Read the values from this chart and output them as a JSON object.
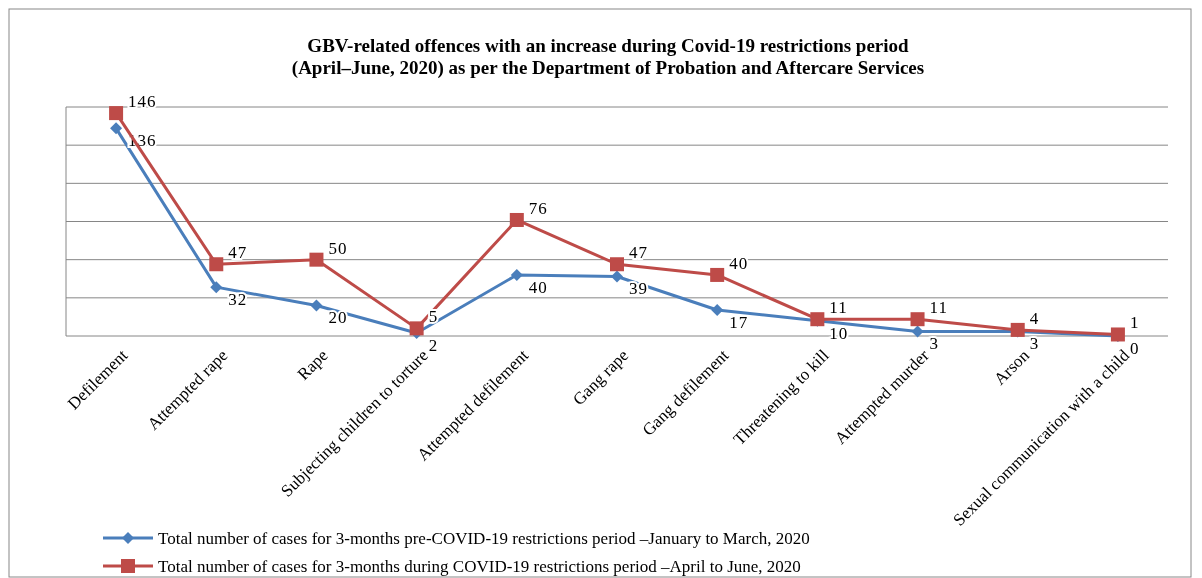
{
  "chart_data": {
    "type": "line",
    "title": "GBV-related offences with an increase during Covid-19 restrictions period\n(April–June, 2020) as per the Department of Probation and Aftercare Services",
    "categories": [
      "Defilement",
      "Attempted rape",
      "Rape",
      "Subjecting children to torture",
      "Attempted defilement",
      "Gang rape",
      "Gang defilement",
      "Threatening to kill",
      "Attempted murder",
      "Arson",
      "Sexual communication with a child"
    ],
    "series": [
      {
        "name": "Total number of cases for 3-months pre-COVID-19 restrictions period –January to March, 2020",
        "color": "#4a7ebb",
        "marker": "diamond",
        "values": [
          136,
          32,
          20,
          2,
          40,
          39,
          17,
          10,
          3,
          3,
          0
        ]
      },
      {
        "name": "Total number of cases for 3-months  during COVID-19 restrictions period –April to June, 2020",
        "color": "#be4b48",
        "marker": "square",
        "values": [
          146,
          47,
          50,
          5,
          76,
          47,
          40,
          11,
          11,
          4,
          1
        ]
      }
    ],
    "ylim": [
      0,
      150
    ],
    "yticks": [
      {
        "value": 0,
        "label": null
      },
      {
        "value": 25,
        "label": null
      },
      {
        "value": 50,
        "label": null
      },
      {
        "value": 75,
        "label": null
      },
      {
        "value": 100,
        "label": null
      },
      {
        "value": 125,
        "label": null
      },
      {
        "value": 150,
        "label": null
      }
    ],
    "tick_labels": "x",
    "grid": "y",
    "data_labels": true,
    "legend": "bottom",
    "line_style": "solid"
  }
}
